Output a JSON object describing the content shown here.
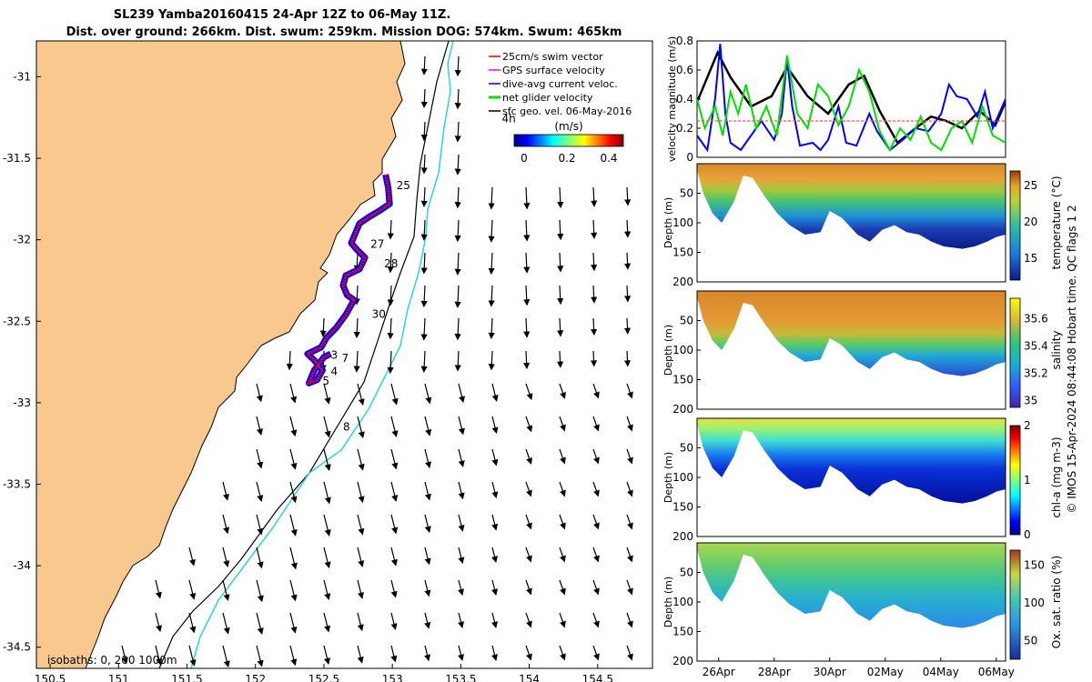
{
  "title": {
    "line1": "SL239 Yamba20160415 24-Apr 12Z to 06-May 11Z.",
    "line2": "Dist. over ground: 266km. Dist. swum: 259km. Mission DOG: 574km. Swum: 465km"
  },
  "credit": "© IMOS 15-Apr-2024 08:44:08 Hobart time. QC flags 1  2",
  "colors": {
    "land": "#f9c88f",
    "track": "#ff0000",
    "dive_avg": "#0000ff",
    "net_glider": "#00e000",
    "isobath_200": "#000000",
    "isobath_1000": "#2fd4d4",
    "arrows": "#000000"
  },
  "chart_data": [
    {
      "type": "map",
      "name": "glider-track-map",
      "xticks": [
        "150.5",
        "151",
        "151.5",
        "152",
        "152.5",
        "153",
        "153.5",
        "154",
        "154.5"
      ],
      "yticks": [
        "-31",
        "-31.5",
        "-32",
        "-32.5",
        "-33",
        "-33.5",
        "-34",
        "-34.5"
      ],
      "xlim": [
        150.4,
        154.9
      ],
      "ylim": [
        -34.63,
        -30.78
      ],
      "legend": [
        {
          "label": "25cm/s swim vector",
          "color": "#ff0000",
          "marker": "arrow"
        },
        {
          "label": "GPS surface velocity",
          "color": "#ff00ff",
          "marker": "arrow"
        },
        {
          "label": "dive-avg current veloc.",
          "color": "#0000ff",
          "marker": "arrow"
        },
        {
          "label": "net glider velocity",
          "color": "#00e000",
          "marker": "arrow"
        },
        {
          "label": "sfc geo. vel. 06-May-2016",
          "color": "#000000",
          "marker": "arrow"
        }
      ],
      "colorbar": {
        "ticks": [
          "0",
          "0.2",
          "0.4"
        ],
        "label": "(m/s)",
        "range": [
          0,
          0.5
        ]
      },
      "isobaths_label": "isobaths: 0, 200  1000m",
      "day_labels": [
        {
          "text": "25",
          "lon": 153.03,
          "lat": -31.69
        },
        {
          "text": "27",
          "lon": 152.84,
          "lat": -32.05
        },
        {
          "text": "28",
          "lon": 152.94,
          "lat": -32.17
        },
        {
          "text": "30",
          "lon": 152.85,
          "lat": -32.48
        },
        {
          "text": "3",
          "lon": 152.55,
          "lat": -32.73
        },
        {
          "text": "7",
          "lon": 152.63,
          "lat": -32.75
        },
        {
          "text": "4",
          "lon": 152.55,
          "lat": -32.83
        },
        {
          "text": "5",
          "lon": 152.49,
          "lat": -32.89
        },
        {
          "text": "8",
          "lon": 152.64,
          "lat": -33.17
        },
        {
          "text": "4h",
          "lon": 153.8,
          "lat": -31.28
        }
      ],
      "track": [
        [
          152.95,
          -31.6
        ],
        [
          152.97,
          -31.68
        ],
        [
          152.98,
          -31.78
        ],
        [
          152.91,
          -31.82
        ],
        [
          152.83,
          -31.86
        ],
        [
          152.76,
          -31.9
        ],
        [
          152.73,
          -31.96
        ],
        [
          152.7,
          -32.02
        ],
        [
          152.74,
          -32.06
        ],
        [
          152.8,
          -32.11
        ],
        [
          152.76,
          -32.18
        ],
        [
          152.66,
          -32.22
        ],
        [
          152.64,
          -32.28
        ],
        [
          152.67,
          -32.34
        ],
        [
          152.72,
          -32.37
        ],
        [
          152.66,
          -32.46
        ],
        [
          152.59,
          -32.54
        ],
        [
          152.52,
          -32.6
        ],
        [
          152.48,
          -32.66
        ],
        [
          152.38,
          -32.7
        ],
        [
          152.43,
          -32.74
        ],
        [
          152.49,
          -32.8
        ],
        [
          152.45,
          -32.86
        ],
        [
          152.39,
          -32.88
        ],
        [
          152.43,
          -32.8
        ],
        [
          152.5,
          -32.72
        ],
        [
          152.55,
          -32.7
        ]
      ]
    },
    {
      "type": "line",
      "name": "velocity-magnitude",
      "ylabel": "velocity magnitude (m/s)",
      "yticks": [
        "0",
        "0.2",
        "0.4",
        "0.6",
        "0.8"
      ],
      "ylim": [
        0,
        0.8
      ],
      "xlim": [
        24.5,
        36.5
      ],
      "series": [
        {
          "color": "#000000",
          "x": [
            24.5,
            25.3,
            25.8,
            26.6,
            27.4,
            28.0,
            28.8,
            29.6,
            30.4,
            31.0,
            31.6,
            32.3,
            33.0,
            33.6,
            34.2,
            34.8,
            35.5,
            36.1,
            36.5
          ],
          "y": [
            0.38,
            0.72,
            0.55,
            0.35,
            0.42,
            0.62,
            0.42,
            0.3,
            0.5,
            0.56,
            0.32,
            0.1,
            0.2,
            0.28,
            0.25,
            0.2,
            0.32,
            0.22,
            0.38
          ]
        },
        {
          "color": "#0000ff",
          "x": [
            24.5,
            24.9,
            25.2,
            25.4,
            25.6,
            25.8,
            26.2,
            26.6,
            27.0,
            27.5,
            27.8,
            28.0,
            28.2,
            28.5,
            29.0,
            29.3,
            29.6,
            30.0,
            30.3,
            30.7,
            31.2,
            31.5,
            32.0,
            32.5,
            33.0,
            33.5,
            34.0,
            34.3,
            34.6,
            35.0,
            35.4,
            35.7,
            36.0,
            36.5
          ],
          "y": [
            0.15,
            0.05,
            0.4,
            0.78,
            0.3,
            0.1,
            0.05,
            0.15,
            0.25,
            0.12,
            0.3,
            0.68,
            0.35,
            0.08,
            0.1,
            0.05,
            0.12,
            0.35,
            0.1,
            0.08,
            0.3,
            0.18,
            0.05,
            0.12,
            0.2,
            0.18,
            0.3,
            0.5,
            0.42,
            0.4,
            0.28,
            0.45,
            0.2,
            0.4
          ]
        },
        {
          "color": "#00e000",
          "x": [
            24.5,
            24.8,
            25.2,
            25.5,
            25.8,
            26.1,
            26.4,
            26.8,
            27.2,
            27.6,
            28.0,
            28.4,
            28.8,
            29.2,
            29.6,
            30.0,
            30.4,
            30.8,
            31.2,
            31.6,
            32.0,
            32.4,
            32.8,
            33.2,
            33.6,
            34.0,
            34.4,
            34.8,
            35.2,
            35.6,
            36.0,
            36.5
          ],
          "y": [
            0.4,
            0.2,
            0.35,
            0.15,
            0.45,
            0.3,
            0.5,
            0.2,
            0.35,
            0.15,
            0.7,
            0.3,
            0.2,
            0.5,
            0.42,
            0.22,
            0.35,
            0.6,
            0.45,
            0.18,
            0.05,
            0.2,
            0.12,
            0.28,
            0.1,
            0.05,
            0.2,
            0.25,
            0.1,
            0.35,
            0.15,
            0.1
          ]
        },
        {
          "color": "#ff5050",
          "dashed": true,
          "x": [
            24.5,
            36.5
          ],
          "y": [
            0.25,
            0.25
          ]
        }
      ]
    },
    {
      "type": "heatmap",
      "name": "temperature-section",
      "ylabel": "Depth (m)",
      "yticks": [
        "50",
        "100",
        "150",
        "200"
      ],
      "ylim": [
        200,
        0
      ],
      "colorbar": {
        "label": "temperature (°C)",
        "ticks": [
          "15",
          "20",
          "25"
        ],
        "range": [
          12,
          27
        ]
      },
      "palette": "parula"
    },
    {
      "type": "heatmap",
      "name": "salinity-section",
      "ylabel": "Depth (m)",
      "yticks": [
        "50",
        "100",
        "150",
        "200"
      ],
      "ylim": [
        200,
        0
      ],
      "colorbar": {
        "label": "salinity",
        "ticks": [
          "35",
          "35.2",
          "35.4",
          "35.6"
        ],
        "range": [
          34.95,
          35.75
        ]
      },
      "palette": "parula"
    },
    {
      "type": "heatmap",
      "name": "chl-a-section",
      "ylabel": "Depth (m)",
      "yticks": [
        "50",
        "100",
        "150",
        "200"
      ],
      "ylim": [
        200,
        0
      ],
      "colorbar": {
        "label": "chl-a (mg m-3)",
        "ticks": [
          "0",
          "1",
          "2"
        ],
        "range": [
          0,
          2
        ]
      },
      "palette": "jet"
    },
    {
      "type": "heatmap",
      "name": "oxygen-section",
      "ylabel": "Depth (m)",
      "yticks": [
        "50",
        "100",
        "150",
        "200"
      ],
      "ylim": [
        200,
        0
      ],
      "xticks": [
        "26Apr",
        "28Apr",
        "30Apr",
        "02May",
        "04May",
        "06May"
      ],
      "colorbar": {
        "label": "Ox. sat. ratio (%)",
        "ticks": [
          "50",
          "100",
          "150"
        ],
        "range": [
          25,
          170
        ]
      },
      "palette": "parula"
    }
  ]
}
